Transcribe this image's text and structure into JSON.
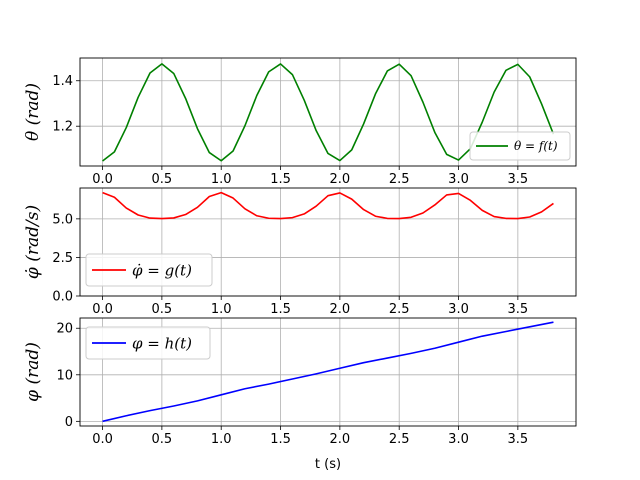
{
  "chart_data": [
    {
      "type": "line",
      "ylabel": "θ  (rad)",
      "xlabel": "",
      "xlim": [
        -0.19,
        3.99
      ],
      "ylim": [
        1.025,
        1.5
      ],
      "xticks": [
        0.0,
        0.5,
        1.0,
        1.5,
        2.0,
        2.5,
        3.0,
        3.5
      ],
      "xtick_labels": [
        "0.0",
        "0.5",
        "1.0",
        "1.5",
        "2.0",
        "2.5",
        "3.0",
        "3.5"
      ],
      "yticks": [
        1.2,
        1.4
      ],
      "ytick_labels": [
        "1.2",
        "1.4"
      ],
      "grid": true,
      "legend_position": "lower right",
      "series": [
        {
          "name": "θ = f(t)",
          "color": "#008000",
          "x": [
            0.0,
            0.1,
            0.2,
            0.3,
            0.4,
            0.5,
            0.6,
            0.7,
            0.8,
            0.9,
            1.0,
            1.1,
            1.2,
            1.3,
            1.4,
            1.5,
            1.6,
            1.7,
            1.8,
            1.9,
            2.0,
            2.1,
            2.2,
            2.3,
            2.4,
            2.5,
            2.6,
            2.7,
            2.8,
            2.9,
            3.0,
            3.1,
            3.2,
            3.3,
            3.4,
            3.5,
            3.6,
            3.7,
            3.8
          ],
          "values": [
            1.047,
            1.087,
            1.194,
            1.327,
            1.434,
            1.474,
            1.432,
            1.322,
            1.189,
            1.084,
            1.048,
            1.091,
            1.202,
            1.335,
            1.439,
            1.474,
            1.427,
            1.314,
            1.181,
            1.08,
            1.049,
            1.096,
            1.21,
            1.342,
            1.443,
            1.473,
            1.422,
            1.306,
            1.173,
            1.076,
            1.051,
            1.101,
            1.218,
            1.35,
            1.446,
            1.472,
            1.417,
            1.298,
            1.165
          ]
        }
      ]
    },
    {
      "type": "line",
      "ylabel": "φ̇  (rad/s)",
      "xlabel": "",
      "xlim": [
        -0.19,
        3.99
      ],
      "ylim": [
        0.0,
        7.0
      ],
      "xticks": [
        0.0,
        0.5,
        1.0,
        1.5,
        2.0,
        2.5,
        3.0,
        3.5
      ],
      "xtick_labels": [
        "0.0",
        "0.5",
        "1.0",
        "1.5",
        "2.0",
        "2.5",
        "3.0",
        "3.5"
      ],
      "yticks": [
        0.0,
        2.5,
        5.0
      ],
      "ytick_labels": [
        "0.0",
        "2.5",
        "5.0"
      ],
      "grid": true,
      "legend_position": "lower left",
      "series": [
        {
          "name": "φ̇ = g(t)",
          "color": "#ff0000",
          "x": [
            0.0,
            0.1,
            0.2,
            0.3,
            0.4,
            0.5,
            0.6,
            0.7,
            0.8,
            0.9,
            1.0,
            1.1,
            1.2,
            1.3,
            1.4,
            1.5,
            1.6,
            1.7,
            1.8,
            1.9,
            2.0,
            2.1,
            2.2,
            2.3,
            2.4,
            2.5,
            2.6,
            2.7,
            2.8,
            2.9,
            3.0,
            3.1,
            3.2,
            3.3,
            3.4,
            3.5,
            3.6,
            3.7,
            3.8
          ],
          "values": [
            6.7,
            6.4,
            5.7,
            5.25,
            5.05,
            5.02,
            5.06,
            5.28,
            5.75,
            6.45,
            6.7,
            6.35,
            5.65,
            5.2,
            5.04,
            5.02,
            5.08,
            5.32,
            5.82,
            6.5,
            6.68,
            6.28,
            5.6,
            5.17,
            5.03,
            5.02,
            5.1,
            5.38,
            5.9,
            6.55,
            6.65,
            6.2,
            5.55,
            5.15,
            5.03,
            5.02,
            5.12,
            5.45,
            6.0
          ]
        }
      ]
    },
    {
      "type": "line",
      "ylabel": "φ  (rad)",
      "xlabel": "t (s)",
      "xlim": [
        -0.19,
        3.99
      ],
      "ylim": [
        -1.0,
        22.2
      ],
      "xticks": [
        0.0,
        0.5,
        1.0,
        1.5,
        2.0,
        2.5,
        3.0,
        3.5
      ],
      "xtick_labels": [
        "0.0",
        "0.5",
        "1.0",
        "1.5",
        "2.0",
        "2.5",
        "3.0",
        "3.5"
      ],
      "yticks": [
        0,
        10,
        20
      ],
      "ytick_labels": [
        "0",
        "10",
        "20"
      ],
      "grid": true,
      "legend_position": "upper left",
      "series": [
        {
          "name": "φ = h(t)",
          "color": "#0000ff",
          "x": [
            0.0,
            0.2,
            0.4,
            0.6,
            0.8,
            1.0,
            1.2,
            1.4,
            1.6,
            1.8,
            2.0,
            2.2,
            2.4,
            2.6,
            2.8,
            3.0,
            3.2,
            3.4,
            3.6,
            3.8
          ],
          "values": [
            0.0,
            1.2,
            2.3,
            3.3,
            4.4,
            5.7,
            7.0,
            8.0,
            9.1,
            10.2,
            11.4,
            12.6,
            13.6,
            14.6,
            15.7,
            17.0,
            18.3,
            19.3,
            20.3,
            21.3
          ]
        }
      ]
    }
  ]
}
